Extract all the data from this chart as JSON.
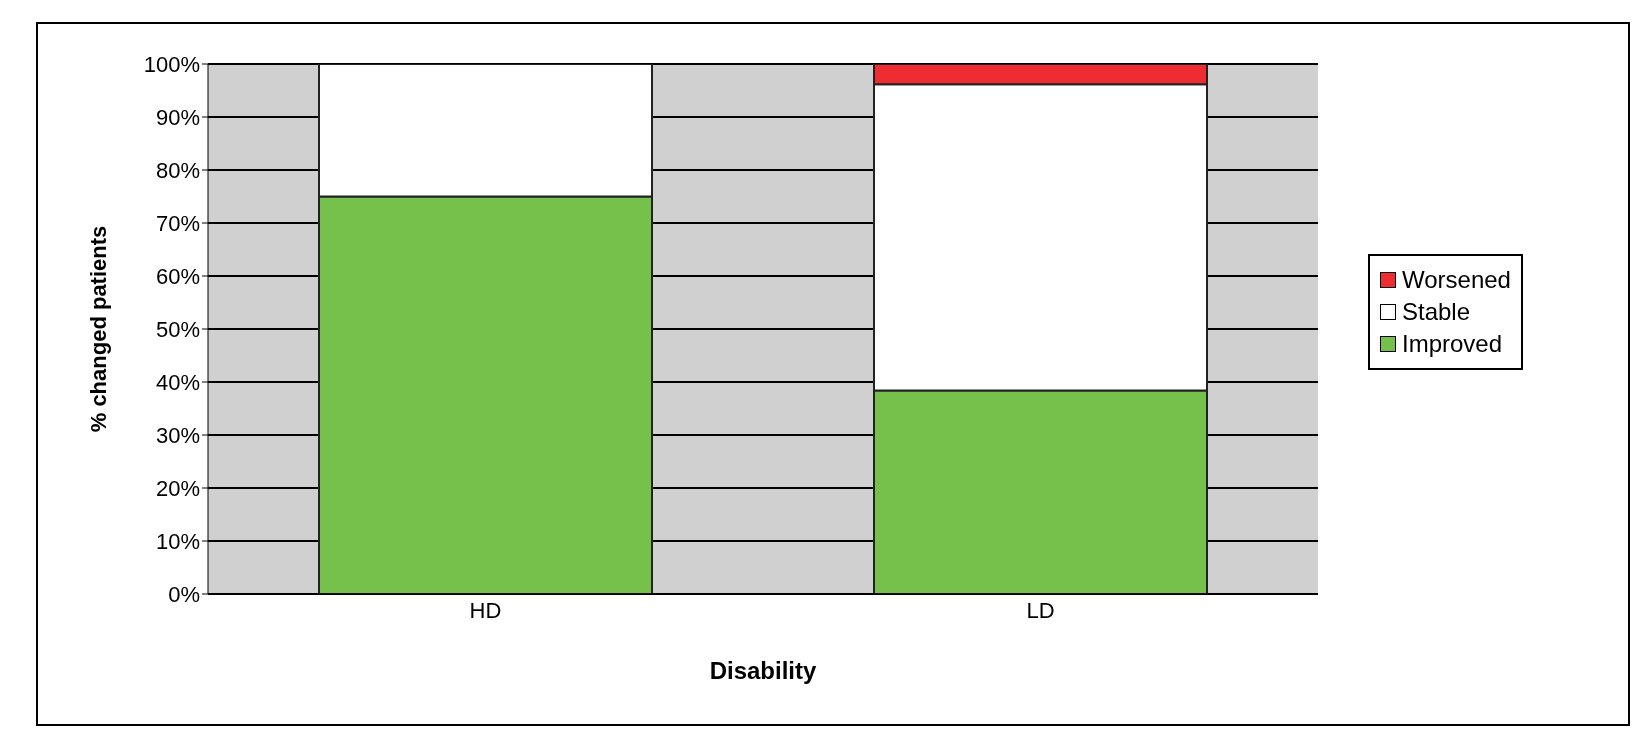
{
  "chart_data": {
    "type": "bar",
    "xlabel": "Disability",
    "ylabel": "% changed patients",
    "categories": [
      "HD",
      "LD"
    ],
    "stacked": true,
    "series": [
      {
        "name": "Improved",
        "color": "#76c04c",
        "values": [
          75,
          38.4
        ]
      },
      {
        "name": "Stable",
        "color": "#ffffff",
        "values": [
          25,
          57.8
        ]
      },
      {
        "name": "Worsened",
        "color": "#ee2d32",
        "values": [
          0,
          3.8
        ]
      }
    ],
    "ylim": [
      0,
      100
    ],
    "yticks": [
      {
        "value": 0,
        "label": "0%"
      },
      {
        "value": 10,
        "label": "10%"
      },
      {
        "value": 20,
        "label": "20%"
      },
      {
        "value": 30,
        "label": "30%"
      },
      {
        "value": 40,
        "label": "40%"
      },
      {
        "value": 50,
        "label": "50%"
      },
      {
        "value": 60,
        "label": "60%"
      },
      {
        "value": 70,
        "label": "70%"
      },
      {
        "value": 80,
        "label": "80%"
      },
      {
        "value": 90,
        "label": "90%"
      },
      {
        "value": 100,
        "label": "100%"
      }
    ],
    "grid": "y",
    "legend": "right"
  }
}
